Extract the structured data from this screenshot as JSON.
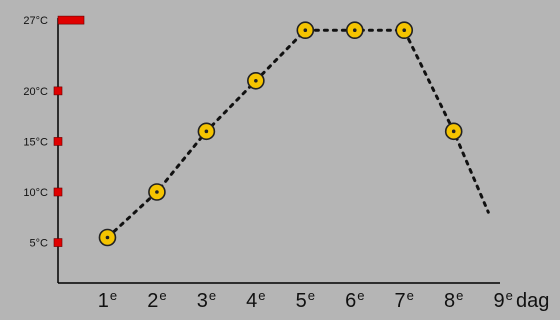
{
  "chart_data": {
    "type": "line",
    "title": "",
    "xlabel": "dag",
    "ylabel": "",
    "x_tick_labels": [
      "1e",
      "2e",
      "3e",
      "4e",
      "5e",
      "6e",
      "7e",
      "8e",
      "9e"
    ],
    "y_tick_labels": [
      "5°C",
      "10°C",
      "15°C",
      "20°C",
      "27°C"
    ],
    "y_ticks": [
      5,
      10,
      15,
      20,
      27
    ],
    "ylim": [
      1,
      28
    ],
    "xlim": [
      0,
      9.3
    ],
    "grid": false,
    "series": [
      {
        "x": [
          1,
          2,
          3,
          4,
          5,
          6,
          7,
          8,
          8.7
        ],
        "values": [
          5.5,
          10,
          16,
          21,
          26,
          26,
          26,
          16,
          8
        ],
        "marked": [
          true,
          true,
          true,
          true,
          true,
          true,
          true,
          true,
          false
        ]
      }
    ],
    "colors": {
      "background": "#b5b5b5",
      "marker_fill": "#f5c400",
      "marker_stroke": "#222222",
      "line": "#111111",
      "y_tick_marker": "#e00000"
    }
  }
}
